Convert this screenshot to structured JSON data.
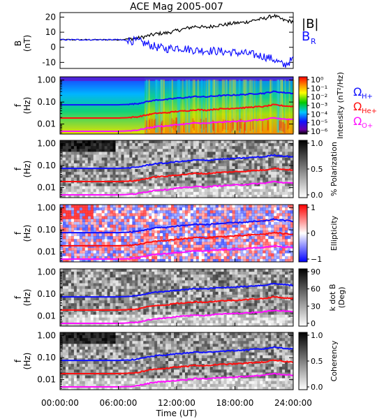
{
  "title": "ACE Mag 2005-007",
  "xlabel": "Time (UT)",
  "x_ticks": [
    "00:00:00",
    "06:00:00",
    "12:00:00",
    "18:00:00",
    "24:00:00"
  ],
  "colors": {
    "btot": "#000000",
    "br": "#1010ff",
    "omega_h": "#1010ff",
    "omega_he": "#ff1010",
    "omega_o": "#ff10ff"
  },
  "chart_data": [
    {
      "type": "line",
      "panel": "B",
      "ylabel_top": "B",
      "ylabel_bottom": "(nT)",
      "ylim": [
        -14,
        23
      ],
      "y_ticks": [
        20,
        10,
        0,
        -10
      ],
      "x_range_hours": [
        0,
        24
      ],
      "legend": [
        "|B|",
        "B",
        "R"
      ],
      "legend_placement": "right",
      "series": [
        {
          "name": "|B|",
          "color": "#000000",
          "x": [
            0,
            2,
            4,
            6,
            7,
            8,
            9,
            10,
            11,
            12,
            13,
            14,
            15,
            16,
            17,
            18,
            19,
            20,
            21,
            22,
            23,
            24
          ],
          "values": [
            5,
            5,
            5,
            5,
            5.5,
            6,
            7.5,
            9,
            9.5,
            11,
            12.5,
            14,
            13,
            14.5,
            15,
            16,
            16.5,
            18,
            19,
            21,
            18,
            17
          ]
        },
        {
          "name": "BR",
          "color": "#1010ff",
          "x": [
            0,
            2,
            4,
            6,
            7,
            8,
            9,
            10,
            11,
            12,
            13,
            14,
            15,
            16,
            17,
            18,
            19,
            20,
            21,
            22,
            23,
            24
          ],
          "values": [
            5,
            5,
            5,
            5,
            4.5,
            4,
            2,
            0,
            -1,
            0,
            -1,
            -2,
            -2,
            -2.5,
            -3,
            -3.5,
            -4,
            -5,
            -6,
            -8,
            -12,
            -8
          ]
        }
      ]
    },
    {
      "type": "heatmap",
      "panel": "Intensity",
      "ylabel_top": "f",
      "ylabel_bottom": "(Hz)",
      "y_scale": "log",
      "y_ticks": [
        "1.00",
        "0.10",
        "0.01"
      ],
      "colorbar_label": "Intensity (nT²/Hz)",
      "colorbar_ticks": [
        "10⁰",
        "10⁻¹",
        "10⁻²",
        "10⁻³",
        "10⁻⁴",
        "10⁻⁵",
        "10⁻⁶"
      ],
      "colorscale": "rainbow"
    },
    {
      "type": "heatmap",
      "panel": "% Polarization",
      "ylabel_top": "f",
      "ylabel_bottom": "(Hz)",
      "y_scale": "log",
      "y_ticks": [
        "1.00",
        "0.10",
        "0.01"
      ],
      "colorbar_label": "% Polarization",
      "colorbar_ticks": [
        "1.0",
        "0.5",
        "0.0"
      ],
      "colorscale": "gray"
    },
    {
      "type": "heatmap",
      "panel": "Ellipticity",
      "ylabel_top": "f",
      "ylabel_bottom": "(Hz)",
      "y_scale": "log",
      "y_ticks": [
        "1.00",
        "0.10",
        "0.01"
      ],
      "colorbar_label": "Ellipticity",
      "colorbar_ticks": [
        "1",
        "0",
        "−1"
      ],
      "colorscale": "red-white-blue"
    },
    {
      "type": "heatmap",
      "panel": "k dot B",
      "ylabel_top": "f",
      "ylabel_bottom": "(Hz)",
      "y_scale": "log",
      "y_ticks": [
        "1.00",
        "0.10",
        "0.01"
      ],
      "colorbar_label_1": "k dot B",
      "colorbar_label_2": "(Deg)",
      "colorbar_ticks": [
        "90",
        "60",
        "30",
        "0"
      ],
      "colorscale": "gray"
    },
    {
      "type": "heatmap",
      "panel": "Coherency",
      "ylabel_top": "f",
      "ylabel_bottom": "(Hz)",
      "y_scale": "log",
      "y_ticks": [
        "1.00",
        "0.10",
        "0.01"
      ],
      "colorbar_label": "Coherency",
      "colorbar_ticks": [
        "1.0",
        "0.5",
        "0.0"
      ],
      "colorscale": "gray"
    }
  ],
  "gyro_lines": {
    "x_hours": [
      0,
      2,
      4,
      6,
      7,
      8,
      9,
      10,
      11,
      12,
      13,
      14,
      15,
      16,
      17,
      18,
      19,
      20,
      21,
      22,
      23,
      24
    ],
    "omega_h_hz": [
      0.075,
      0.075,
      0.075,
      0.075,
      0.078,
      0.085,
      0.105,
      0.125,
      0.13,
      0.15,
      0.16,
      0.18,
      0.17,
      0.19,
      0.2,
      0.21,
      0.22,
      0.24,
      0.25,
      0.3,
      0.27,
      0.25
    ]
  },
  "gyro_legend": [
    {
      "symbol": "Ω",
      "sub": "H+",
      "color": "#1010ff"
    },
    {
      "symbol": "Ω",
      "sub": "He+",
      "color": "#ff1010"
    },
    {
      "symbol": "Ω",
      "sub": "O+",
      "color": "#ff10ff"
    }
  ]
}
